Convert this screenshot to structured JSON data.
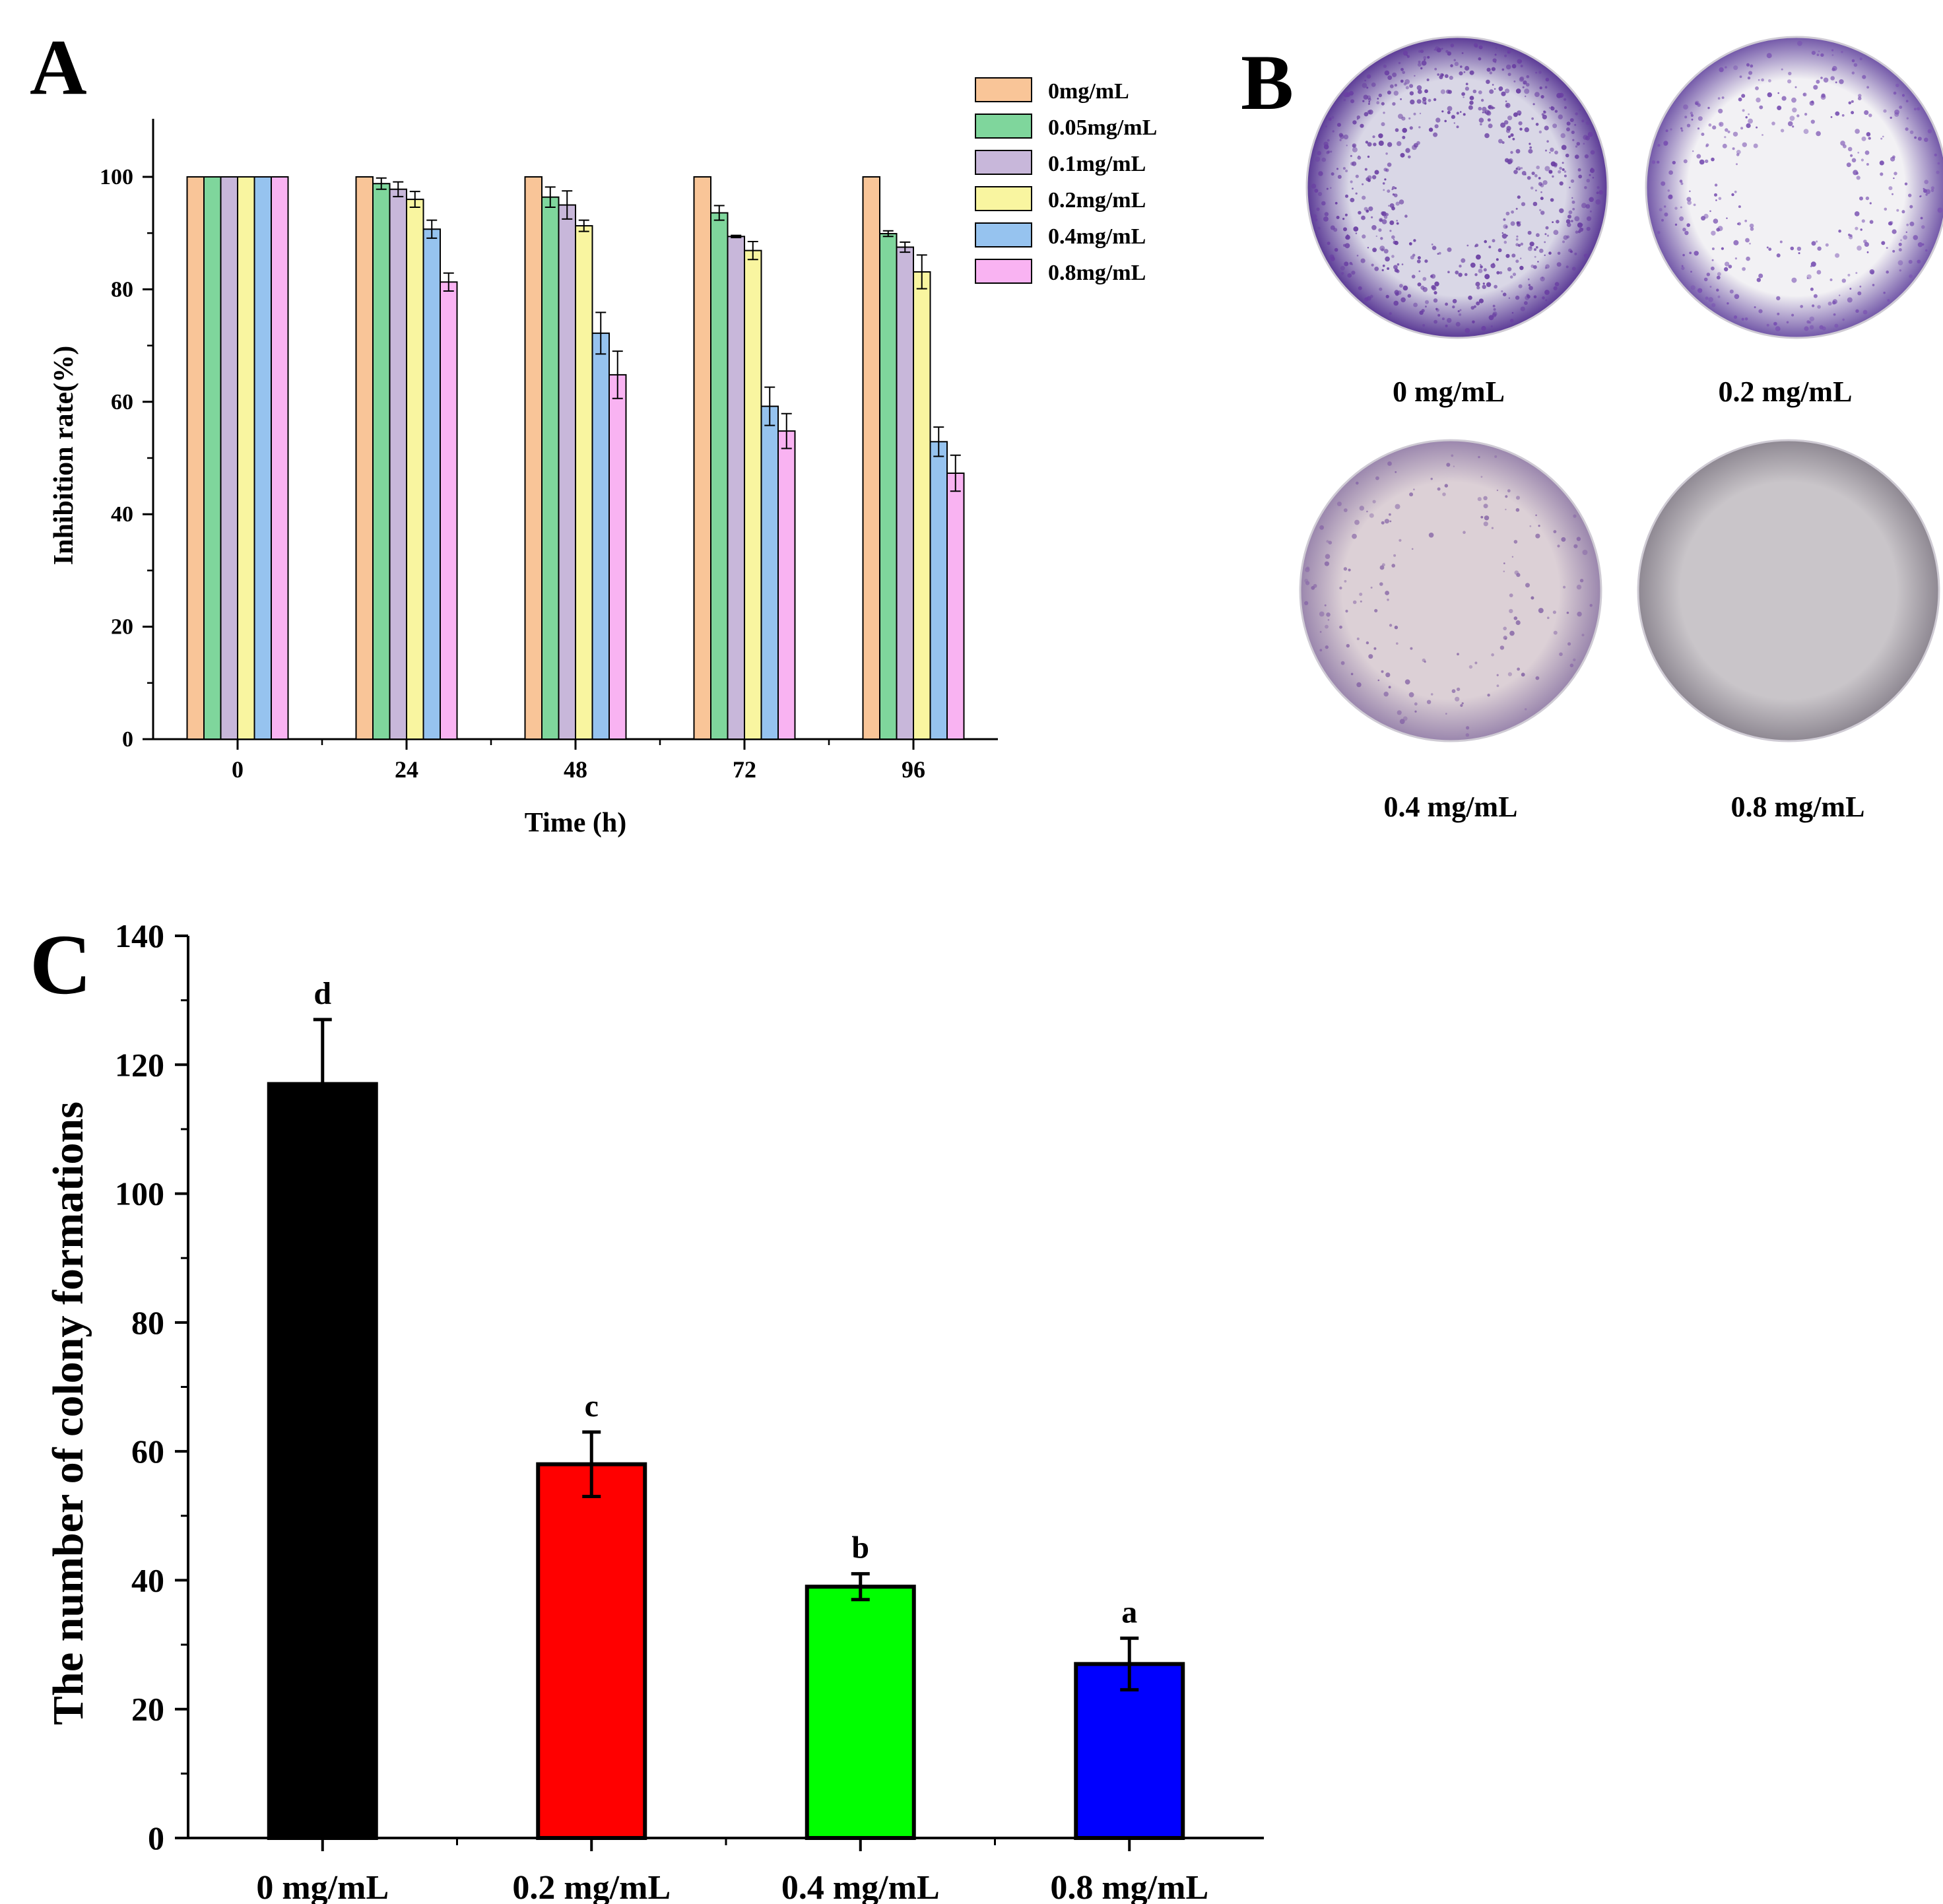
{
  "panels": {
    "A": {
      "letter": "A"
    },
    "B": {
      "letter": "B",
      "dishes": [
        {
          "label": "0 mg/mL",
          "density": 1.0,
          "rim": "#5b3a96",
          "center": "#d9d7e6",
          "dot": "#6a3fa3"
        },
        {
          "label": "0.2 mg/mL",
          "density": 0.55,
          "rim": "#7257a8",
          "center": "#f2f1f4",
          "dot": "#7a52b2"
        },
        {
          "label": "0.4 mg/mL",
          "density": 0.25,
          "rim": "#9a86ad",
          "center": "#dcd0d6",
          "dot": "#8a6aa8"
        },
        {
          "label": "0.8 mg/mL",
          "density": 0.0,
          "rim": "#8e8892",
          "center": "#c9c5c9",
          "dot": "#9a8fa0"
        }
      ]
    },
    "C": {
      "letter": "C"
    }
  },
  "chart_data": [
    {
      "id": "A",
      "type": "bar",
      "title": "",
      "xlabel": "Time (h)",
      "ylabel": "Inhibition rate(%)",
      "ylim": [
        0,
        110
      ],
      "yticks": [
        0,
        20,
        40,
        60,
        80,
        100
      ],
      "categories": [
        "0",
        "24",
        "48",
        "72",
        "96"
      ],
      "legend_position": "top-right",
      "series": [
        {
          "name": "0mg/mL",
          "color": "#f9c598",
          "values": [
            100,
            100,
            100,
            100,
            100
          ],
          "errors": [
            0,
            0,
            0,
            0,
            0
          ]
        },
        {
          "name": "0.05mg/mL",
          "color": "#7fd69c",
          "values": [
            100,
            98.8,
            96.4,
            93.6,
            89.9
          ],
          "errors": [
            0,
            1.0,
            1.8,
            1.3,
            0.5
          ]
        },
        {
          "name": "0.1mg/mL",
          "color": "#c8b7da",
          "values": [
            100,
            97.8,
            95.0,
            89.4,
            87.5
          ],
          "errors": [
            0,
            1.3,
            2.5,
            0.2,
            0.9
          ]
        },
        {
          "name": "0.2mg/mL",
          "color": "#f9f5a0",
          "values": [
            100,
            96.0,
            91.3,
            86.9,
            83.1
          ],
          "errors": [
            0,
            1.4,
            1.0,
            1.6,
            3.0
          ]
        },
        {
          "name": "0.4mg/mL",
          "color": "#96c3ef",
          "values": [
            100,
            90.7,
            72.2,
            59.2,
            52.9
          ],
          "errors": [
            0,
            1.6,
            3.7,
            3.4,
            2.6
          ]
        },
        {
          "name": "0.8mg/mL",
          "color": "#f9b3f2",
          "values": [
            100,
            81.3,
            64.8,
            54.8,
            47.3
          ],
          "errors": [
            0,
            1.6,
            4.2,
            3.1,
            3.2
          ]
        }
      ]
    },
    {
      "id": "C",
      "type": "bar",
      "title": "",
      "xlabel": "",
      "ylabel": "The number of colony formations",
      "ylim": [
        0,
        140
      ],
      "yticks": [
        0,
        20,
        40,
        60,
        80,
        100,
        120,
        140
      ],
      "categories": [
        "0 mg/mL",
        "0.2 mg/mL",
        "0.4 mg/mL",
        "0.8 mg/mL"
      ],
      "values": [
        117,
        58,
        39,
        27
      ],
      "errors": [
        10,
        5,
        2,
        4
      ],
      "letters": [
        "d",
        "c",
        "b",
        "a"
      ],
      "colors": [
        "#000000",
        "#ff0000",
        "#00ff00",
        "#0000ff"
      ]
    }
  ]
}
